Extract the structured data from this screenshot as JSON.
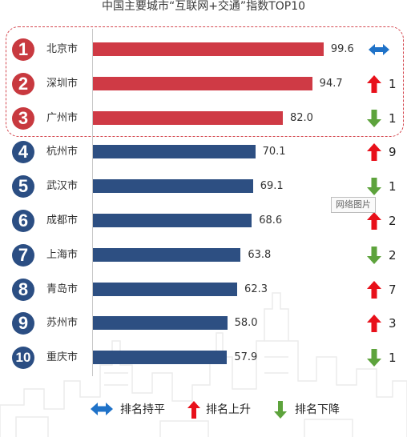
{
  "title": "中国主要城市“互联网+交通”指数TOP10",
  "tooltip": "网络图片",
  "colors": {
    "top3_bar": "#cf3a45",
    "top3_badge": "#c8393f",
    "other_bar": "#2d4f82",
    "other_badge": "#2b4e83",
    "up_arrow": "#e8101a",
    "down_arrow": "#5da33c",
    "flat_arrow": "#1f72c8",
    "top3_box_border": "#d4474f"
  },
  "legend": [
    {
      "icon": "flat-arrow-icon",
      "label": "排名持平"
    },
    {
      "icon": "up-arrow-icon",
      "label": "排名上升"
    },
    {
      "icon": "down-arrow-icon",
      "label": "排名下降"
    }
  ],
  "chart_data": {
    "type": "bar",
    "orientation": "horizontal",
    "title": "中国主要城市“互联网+交通”指数TOP10",
    "categories": [
      "北京市",
      "深圳市",
      "广州市",
      "杭州市",
      "武汉市",
      "成都市",
      "上海市",
      "青岛市",
      "苏州市",
      "重庆市"
    ],
    "values": [
      99.6,
      94.7,
      82.0,
      70.1,
      69.1,
      68.6,
      63.8,
      62.3,
      58.0,
      57.9
    ],
    "value_labels": [
      "99.6",
      "94.7",
      "82.0",
      "70.1",
      "69.1",
      "68.6",
      "63.8",
      "62.3",
      "58.0",
      "57.9"
    ],
    "ranks": [
      "1",
      "2",
      "3",
      "4",
      "5",
      "6",
      "7",
      "8",
      "9",
      "10"
    ],
    "rank_change": [
      "flat",
      "up",
      "down",
      "up",
      "down",
      "up",
      "down",
      "up",
      "up",
      "down"
    ],
    "rank_change_amount": [
      "",
      "1",
      "1",
      "9",
      "1",
      "2",
      "2",
      "7",
      "3",
      "1"
    ],
    "xlim": [
      0,
      100
    ],
    "grid": false,
    "legend_position": "bottom"
  }
}
